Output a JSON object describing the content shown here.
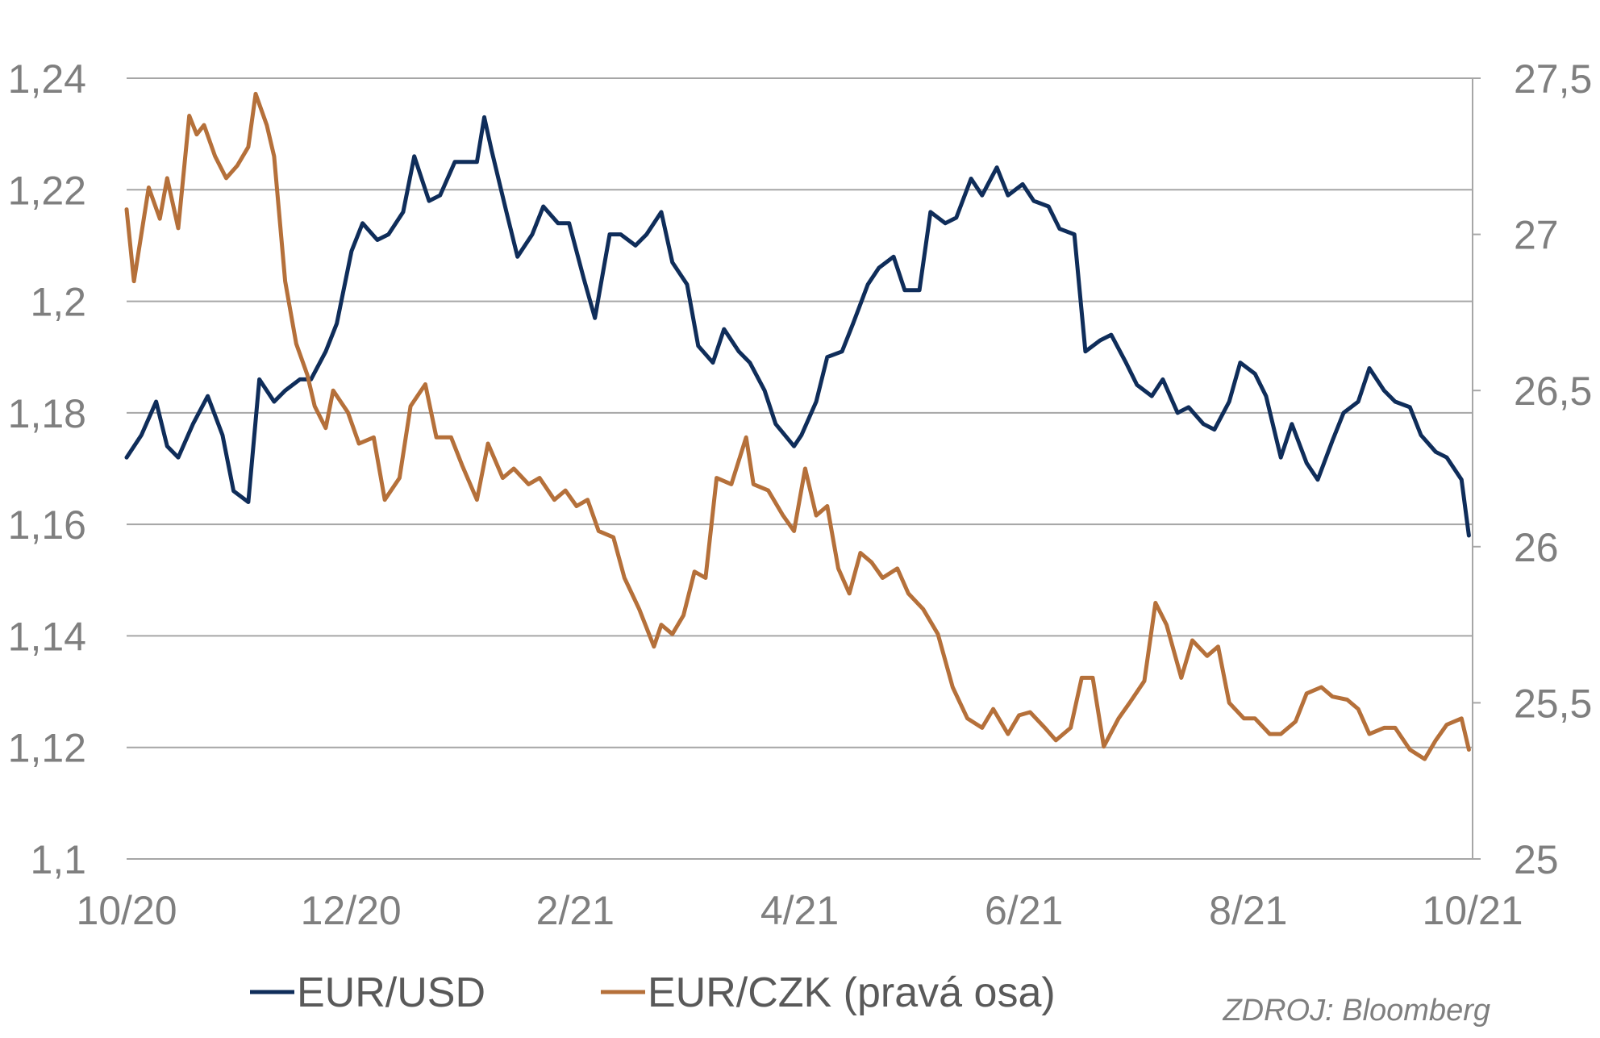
{
  "colors": {
    "eurusd": "#0f2d5a",
    "eurczk": "#b5703a",
    "grid": "#a6a6a6",
    "tick_text": "#7f7f7f",
    "legend_text": "#595959"
  },
  "source": "ZDROJ: Bloomberg",
  "chart_data": {
    "type": "line",
    "title": "",
    "x_ticks": [
      "10/20",
      "12/20",
      "2/21",
      "4/21",
      "6/21",
      "8/21",
      "10/21"
    ],
    "x_range": [
      "2020-10-01",
      "2021-10-01"
    ],
    "y_left": {
      "min": 1.1,
      "max": 1.24,
      "ticks": [
        "1,1",
        "1,12",
        "1,14",
        "1,16",
        "1,18",
        "1,2",
        "1,22",
        "1,24"
      ]
    },
    "y_right": {
      "min": 25,
      "max": 27.5,
      "ticks": [
        "25",
        "25,5",
        "26",
        "26,5",
        "27",
        "27,5"
      ]
    },
    "grid": true,
    "legend_position": "bottom",
    "series": [
      {
        "name": "EUR/USD",
        "axis": "left",
        "points": [
          [
            "2020-10-01",
            1.172
          ],
          [
            "2020-10-05",
            1.176
          ],
          [
            "2020-10-09",
            1.182
          ],
          [
            "2020-10-12",
            1.174
          ],
          [
            "2020-10-15",
            1.172
          ],
          [
            "2020-10-19",
            1.178
          ],
          [
            "2020-10-23",
            1.183
          ],
          [
            "2020-10-27",
            1.176
          ],
          [
            "2020-10-30",
            1.166
          ],
          [
            "2020-11-03",
            1.164
          ],
          [
            "2020-11-06",
            1.186
          ],
          [
            "2020-11-10",
            1.182
          ],
          [
            "2020-11-13",
            1.184
          ],
          [
            "2020-11-17",
            1.186
          ],
          [
            "2020-11-20",
            1.186
          ],
          [
            "2020-11-24",
            1.191
          ],
          [
            "2020-11-27",
            1.196
          ],
          [
            "2020-12-01",
            1.209
          ],
          [
            "2020-12-04",
            1.214
          ],
          [
            "2020-12-08",
            1.211
          ],
          [
            "2020-12-11",
            1.212
          ],
          [
            "2020-12-15",
            1.216
          ],
          [
            "2020-12-18",
            1.226
          ],
          [
            "2020-12-22",
            1.218
          ],
          [
            "2020-12-25",
            1.219
          ],
          [
            "2020-12-29",
            1.225
          ],
          [
            "2021-01-04",
            1.225
          ],
          [
            "2021-01-06",
            1.233
          ],
          [
            "2021-01-08",
            1.227
          ],
          [
            "2021-01-12",
            1.216
          ],
          [
            "2021-01-15",
            1.208
          ],
          [
            "2021-01-19",
            1.212
          ],
          [
            "2021-01-22",
            1.217
          ],
          [
            "2021-01-26",
            1.214
          ],
          [
            "2021-01-29",
            1.214
          ],
          [
            "2021-02-02",
            1.204
          ],
          [
            "2021-02-05",
            1.197
          ],
          [
            "2021-02-09",
            1.212
          ],
          [
            "2021-02-12",
            1.212
          ],
          [
            "2021-02-16",
            1.21
          ],
          [
            "2021-02-19",
            1.212
          ],
          [
            "2021-02-23",
            1.216
          ],
          [
            "2021-02-26",
            1.207
          ],
          [
            "2021-03-02",
            1.203
          ],
          [
            "2021-03-05",
            1.192
          ],
          [
            "2021-03-09",
            1.189
          ],
          [
            "2021-03-12",
            1.195
          ],
          [
            "2021-03-16",
            1.191
          ],
          [
            "2021-03-19",
            1.189
          ],
          [
            "2021-03-23",
            1.184
          ],
          [
            "2021-03-26",
            1.178
          ],
          [
            "2021-03-31",
            1.174
          ],
          [
            "2021-04-02",
            1.176
          ],
          [
            "2021-04-06",
            1.182
          ],
          [
            "2021-04-09",
            1.19
          ],
          [
            "2021-04-13",
            1.191
          ],
          [
            "2021-04-16",
            1.196
          ],
          [
            "2021-04-20",
            1.203
          ],
          [
            "2021-04-23",
            1.206
          ],
          [
            "2021-04-27",
            1.208
          ],
          [
            "2021-04-30",
            1.202
          ],
          [
            "2021-05-04",
            1.202
          ],
          [
            "2021-05-07",
            1.216
          ],
          [
            "2021-05-11",
            1.214
          ],
          [
            "2021-05-14",
            1.215
          ],
          [
            "2021-05-18",
            1.222
          ],
          [
            "2021-05-21",
            1.219
          ],
          [
            "2021-05-25",
            1.224
          ],
          [
            "2021-05-28",
            1.219
          ],
          [
            "2021-06-01",
            1.221
          ],
          [
            "2021-06-04",
            1.218
          ],
          [
            "2021-06-08",
            1.217
          ],
          [
            "2021-06-11",
            1.213
          ],
          [
            "2021-06-15",
            1.212
          ],
          [
            "2021-06-18",
            1.191
          ],
          [
            "2021-06-22",
            1.193
          ],
          [
            "2021-06-25",
            1.194
          ],
          [
            "2021-06-29",
            1.189
          ],
          [
            "2021-07-02",
            1.185
          ],
          [
            "2021-07-06",
            1.183
          ],
          [
            "2021-07-09",
            1.186
          ],
          [
            "2021-07-13",
            1.18
          ],
          [
            "2021-07-16",
            1.181
          ],
          [
            "2021-07-20",
            1.178
          ],
          [
            "2021-07-23",
            1.177
          ],
          [
            "2021-07-27",
            1.182
          ],
          [
            "2021-07-30",
            1.189
          ],
          [
            "2021-08-03",
            1.187
          ],
          [
            "2021-08-06",
            1.183
          ],
          [
            "2021-08-10",
            1.172
          ],
          [
            "2021-08-13",
            1.178
          ],
          [
            "2021-08-17",
            1.171
          ],
          [
            "2021-08-20",
            1.168
          ],
          [
            "2021-08-24",
            1.175
          ],
          [
            "2021-08-27",
            1.18
          ],
          [
            "2021-08-31",
            1.182
          ],
          [
            "2021-09-03",
            1.188
          ],
          [
            "2021-09-07",
            1.184
          ],
          [
            "2021-09-10",
            1.182
          ],
          [
            "2021-09-14",
            1.181
          ],
          [
            "2021-09-17",
            1.176
          ],
          [
            "2021-09-21",
            1.173
          ],
          [
            "2021-09-24",
            1.172
          ],
          [
            "2021-09-28",
            1.168
          ],
          [
            "2021-09-30",
            1.158
          ]
        ]
      },
      {
        "name": "EUR/CZK (pravá osa)",
        "axis": "right",
        "points": [
          [
            "2020-10-01",
            27.08
          ],
          [
            "2020-10-03",
            26.85
          ],
          [
            "2020-10-07",
            27.15
          ],
          [
            "2020-10-10",
            27.05
          ],
          [
            "2020-10-12",
            27.18
          ],
          [
            "2020-10-15",
            27.02
          ],
          [
            "2020-10-18",
            27.38
          ],
          [
            "2020-10-20",
            27.32
          ],
          [
            "2020-10-22",
            27.35
          ],
          [
            "2020-10-25",
            27.25
          ],
          [
            "2020-10-28",
            27.18
          ],
          [
            "2020-10-31",
            27.22
          ],
          [
            "2020-11-03",
            27.28
          ],
          [
            "2020-11-05",
            27.45
          ],
          [
            "2020-11-08",
            27.35
          ],
          [
            "2020-11-10",
            27.25
          ],
          [
            "2020-11-13",
            26.85
          ],
          [
            "2020-11-16",
            26.65
          ],
          [
            "2020-11-19",
            26.55
          ],
          [
            "2020-11-21",
            26.45
          ],
          [
            "2020-11-24",
            26.38
          ],
          [
            "2020-11-26",
            26.5
          ],
          [
            "2020-11-30",
            26.43
          ],
          [
            "2020-12-03",
            26.33
          ],
          [
            "2020-12-07",
            26.35
          ],
          [
            "2020-12-10",
            26.15
          ],
          [
            "2020-12-14",
            26.22
          ],
          [
            "2020-12-17",
            26.45
          ],
          [
            "2020-12-21",
            26.52
          ],
          [
            "2020-12-24",
            26.35
          ],
          [
            "2020-12-28",
            26.35
          ],
          [
            "2020-12-31",
            26.26
          ],
          [
            "2021-01-04",
            26.15
          ],
          [
            "2021-01-07",
            26.33
          ],
          [
            "2021-01-11",
            26.22
          ],
          [
            "2021-01-14",
            26.25
          ],
          [
            "2021-01-18",
            26.2
          ],
          [
            "2021-01-21",
            26.22
          ],
          [
            "2021-01-25",
            26.15
          ],
          [
            "2021-01-28",
            26.18
          ],
          [
            "2021-01-31",
            26.13
          ],
          [
            "2021-02-03",
            26.15
          ],
          [
            "2021-02-06",
            26.05
          ],
          [
            "2021-02-10",
            26.03
          ],
          [
            "2021-02-13",
            25.9
          ],
          [
            "2021-02-17",
            25.8
          ],
          [
            "2021-02-21",
            25.68
          ],
          [
            "2021-02-23",
            25.75
          ],
          [
            "2021-02-26",
            25.72
          ],
          [
            "2021-03-01",
            25.78
          ],
          [
            "2021-03-04",
            25.92
          ],
          [
            "2021-03-07",
            25.9
          ],
          [
            "2021-03-10",
            26.22
          ],
          [
            "2021-03-14",
            26.2
          ],
          [
            "2021-03-18",
            26.35
          ],
          [
            "2021-03-20",
            26.2
          ],
          [
            "2021-03-24",
            26.18
          ],
          [
            "2021-03-28",
            26.1
          ],
          [
            "2021-03-31",
            26.05
          ],
          [
            "2021-04-03",
            26.25
          ],
          [
            "2021-04-06",
            26.1
          ],
          [
            "2021-04-09",
            26.13
          ],
          [
            "2021-04-12",
            25.93
          ],
          [
            "2021-04-15",
            25.85
          ],
          [
            "2021-04-18",
            25.98
          ],
          [
            "2021-04-21",
            25.95
          ],
          [
            "2021-04-24",
            25.9
          ],
          [
            "2021-04-28",
            25.93
          ],
          [
            "2021-05-01",
            25.85
          ],
          [
            "2021-05-05",
            25.8
          ],
          [
            "2021-05-09",
            25.72
          ],
          [
            "2021-05-13",
            25.55
          ],
          [
            "2021-05-17",
            25.45
          ],
          [
            "2021-05-21",
            25.42
          ],
          [
            "2021-05-24",
            25.48
          ],
          [
            "2021-05-28",
            25.4
          ],
          [
            "2021-05-31",
            25.46
          ],
          [
            "2021-06-03",
            25.47
          ],
          [
            "2021-06-07",
            25.42
          ],
          [
            "2021-06-10",
            25.38
          ],
          [
            "2021-06-14",
            25.42
          ],
          [
            "2021-06-17",
            25.58
          ],
          [
            "2021-06-20",
            25.58
          ],
          [
            "2021-06-23",
            25.36
          ],
          [
            "2021-06-27",
            25.45
          ],
          [
            "2021-06-30",
            25.5
          ],
          [
            "2021-07-04",
            25.57
          ],
          [
            "2021-07-07",
            25.82
          ],
          [
            "2021-07-10",
            25.75
          ],
          [
            "2021-07-14",
            25.58
          ],
          [
            "2021-07-17",
            25.7
          ],
          [
            "2021-07-21",
            25.65
          ],
          [
            "2021-07-24",
            25.68
          ],
          [
            "2021-07-27",
            25.5
          ],
          [
            "2021-07-31",
            25.45
          ],
          [
            "2021-08-03",
            25.45
          ],
          [
            "2021-08-07",
            25.4
          ],
          [
            "2021-08-10",
            25.4
          ],
          [
            "2021-08-14",
            25.44
          ],
          [
            "2021-08-17",
            25.53
          ],
          [
            "2021-08-21",
            25.55
          ],
          [
            "2021-08-24",
            25.52
          ],
          [
            "2021-08-28",
            25.51
          ],
          [
            "2021-08-31",
            25.48
          ],
          [
            "2021-09-03",
            25.4
          ],
          [
            "2021-09-07",
            25.42
          ],
          [
            "2021-09-10",
            25.42
          ],
          [
            "2021-09-14",
            25.35
          ],
          [
            "2021-09-18",
            25.32
          ],
          [
            "2021-09-21",
            25.38
          ],
          [
            "2021-09-24",
            25.43
          ],
          [
            "2021-09-28",
            25.45
          ],
          [
            "2021-09-30",
            25.35
          ]
        ]
      }
    ]
  }
}
